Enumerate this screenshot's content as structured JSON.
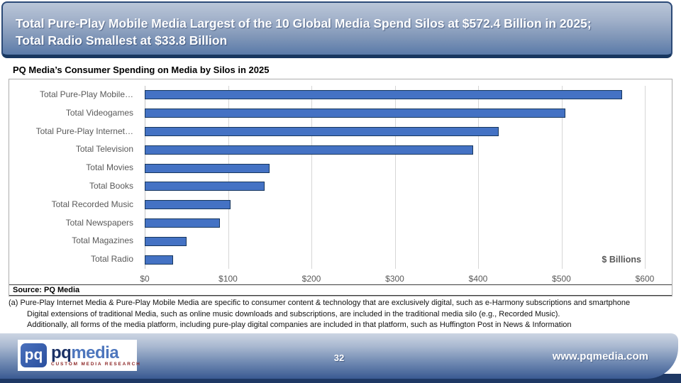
{
  "slide": {
    "title_line1": "Total Pure-Play Mobile Media Largest of the 10 Global Media Spend Silos at $572.4 Billion in 2025;",
    "title_line2": "Total Radio Smallest at $33.8 Billion"
  },
  "chart": {
    "heading": "PQ Media’s Consumer Spending on Media by Silos in 2025",
    "axis_unit_label": "$ Billions",
    "source": "Source: PQ Media"
  },
  "chart_data": {
    "type": "bar",
    "orientation": "horizontal",
    "title": "PQ Media’s Consumer Spending on Media by Silos in 2025",
    "categories": [
      "Total Pure-Play Mobile…",
      "Total Videogames",
      "Total Pure-Play Internet…",
      "Total Television",
      "Total Movies",
      "Total Books",
      "Total Recorded Music",
      "Total Newspapers",
      "Total Magazines",
      "Total Radio"
    ],
    "values": [
      572.4,
      505,
      425,
      394,
      150,
      144,
      103,
      90,
      50,
      33.8
    ],
    "xlabel": "$ Billions",
    "xlim": [
      0,
      600
    ],
    "x_ticks": [
      "$0",
      "$100",
      "$200",
      "$300",
      "$400",
      "$500",
      "$600"
    ],
    "grid": true,
    "legend": false,
    "bar_color": "#4472c4",
    "bar_border_color": "#17375e"
  },
  "footnotes": [
    "(a) Pure-Play Internet Media & Pure-Play Mobile Media are specific to consumer content & technology that are exclusively digital, such as e-Harmony subscriptions and smartphone",
    "Digital extensions of traditional Media, such as online music downloads and subscriptions, are included in the traditional media silo (e.g., Recorded Music).",
    "Additionally, all forms of the media platform, including pure-play digital companies are included in that platform, such as Huffington Post in News & Information"
  ],
  "footer": {
    "logo_mark": "pq",
    "logo_name_primary": "pq",
    "logo_name_secondary": "media",
    "logo_tagline": "CUSTOM MEDIA RESEARCH",
    "page_number": "32",
    "website": "www.pqmedia.com"
  }
}
